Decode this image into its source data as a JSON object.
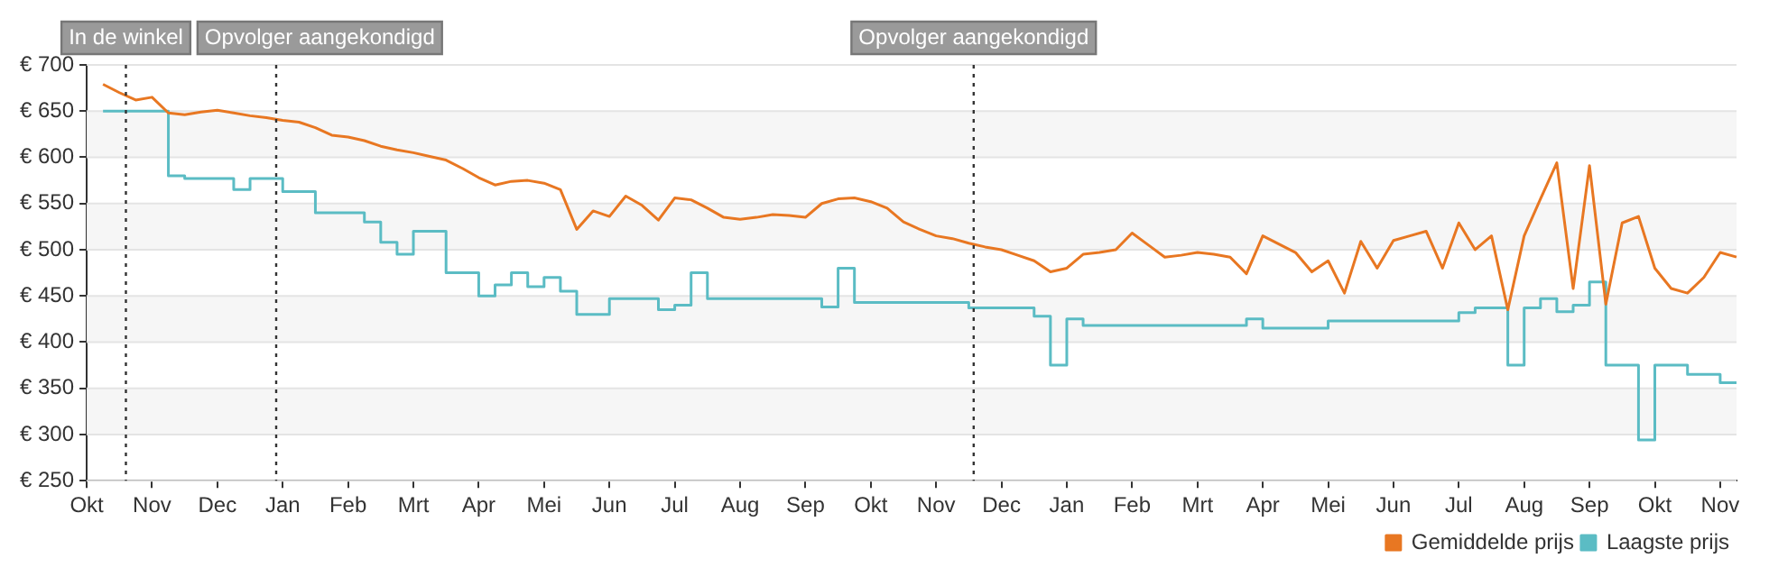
{
  "chart_data": {
    "type": "line",
    "marker": "none",
    "grid": "y",
    "legend": "bottom right",
    "categories": [
      "Okt",
      null,
      null,
      null,
      "Nov",
      null,
      null,
      null,
      "Dec",
      null,
      null,
      null,
      "Jan",
      null,
      null,
      null,
      "Feb",
      null,
      null,
      null,
      "Mrt",
      null,
      null,
      null,
      "Apr",
      null,
      null,
      null,
      "Mei",
      null,
      null,
      null,
      "Jun",
      null,
      null,
      null,
      "Jul",
      null,
      null,
      null,
      "Aug",
      null,
      null,
      null,
      "Sep",
      null,
      null,
      null,
      "Okt",
      null,
      null,
      null,
      "Nov",
      null,
      null,
      null,
      "Dec",
      null,
      null,
      null,
      "Jan",
      null,
      null,
      null,
      "Feb",
      null,
      null,
      null,
      "Mrt",
      null,
      null,
      null,
      "Apr",
      null,
      null,
      null,
      "Mei",
      null,
      null,
      null,
      "Jun",
      null,
      null,
      null,
      "Jul",
      null,
      null,
      null,
      "Aug",
      null,
      null,
      null,
      "Sep",
      null,
      null,
      null,
      "Okt",
      null,
      null,
      null,
      "Nov",
      null
    ],
    "ylim": [
      250,
      700
    ],
    "yticks": [
      {
        "value": 250,
        "label": "€ 250"
      },
      {
        "value": 300,
        "label": "€ 300"
      },
      {
        "value": 350,
        "label": "€ 350"
      },
      {
        "value": 400,
        "label": "€ 400"
      },
      {
        "value": 450,
        "label": "€ 450"
      },
      {
        "value": 500,
        "label": "€ 500"
      },
      {
        "value": 550,
        "label": "€ 550"
      },
      {
        "value": 600,
        "label": "€ 600"
      },
      {
        "value": 650,
        "label": "€ 650"
      },
      {
        "value": 700,
        "label": "€ 700"
      }
    ],
    "annotations": [
      "In de winkel",
      "Opvolger aangekondigd",
      "Opvolger aangekondigd"
    ],
    "series": [
      {
        "name": "Gemiddelde prijs",
        "color": "#e87722",
        "values": [
          null,
          679,
          670,
          662,
          665,
          648,
          646,
          649,
          651,
          648,
          645,
          643,
          640,
          638,
          632,
          624,
          622,
          618,
          612,
          608,
          605,
          601,
          597,
          588,
          578,
          570,
          574,
          575,
          572,
          565,
          522,
          542,
          536,
          558,
          548,
          532,
          556,
          554,
          545,
          535,
          533,
          535,
          538,
          537,
          535,
          550,
          555,
          556,
          552,
          545,
          530,
          522,
          515,
          512,
          507,
          503,
          500,
          494,
          488,
          476,
          480,
          495,
          497,
          500,
          518,
          505,
          492,
          494,
          497,
          495,
          492,
          474,
          515,
          506,
          497,
          476,
          488,
          453,
          509,
          480,
          510,
          515,
          520,
          480,
          529,
          500,
          515,
          435,
          515,
          555,
          594,
          458,
          591,
          441,
          529,
          536,
          480,
          458,
          453,
          470,
          497,
          492
        ]
      },
      {
        "name": "Laagste prijs",
        "color": "#5bbcc4",
        "type": "step",
        "values": [
          null,
          650,
          650,
          650,
          650,
          580,
          577,
          577,
          577,
          565,
          577,
          577,
          563,
          563,
          540,
          540,
          540,
          530,
          508,
          495,
          520,
          520,
          475,
          475,
          450,
          462,
          475,
          460,
          470,
          455,
          430,
          430,
          447,
          447,
          447,
          435,
          440,
          475,
          447,
          447,
          447,
          447,
          447,
          447,
          447,
          438,
          480,
          443,
          443,
          443,
          443,
          443,
          443,
          443,
          437,
          437,
          437,
          437,
          428,
          375,
          425,
          418,
          418,
          418,
          418,
          418,
          418,
          418,
          418,
          418,
          418,
          425,
          415,
          415,
          415,
          415,
          423,
          423,
          423,
          423,
          423,
          423,
          423,
          423,
          432,
          437,
          437,
          375,
          437,
          447,
          433,
          440,
          465,
          375,
          375,
          294,
          375,
          375,
          365,
          365,
          356,
          356
        ]
      }
    ]
  }
}
